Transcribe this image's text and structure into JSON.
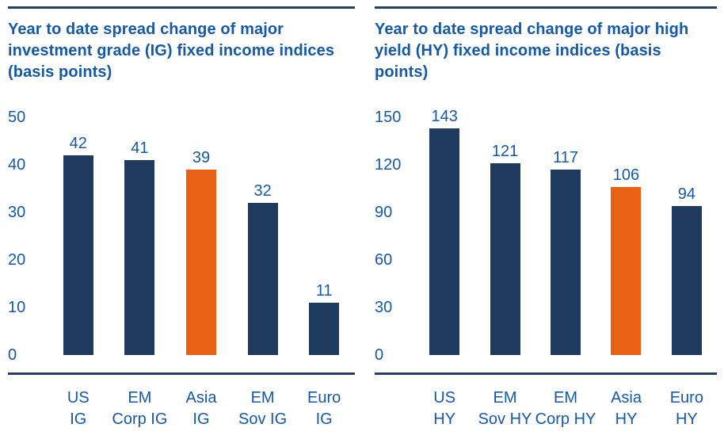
{
  "page_title": "Year to date spread change of fixed income indices",
  "colors": {
    "bar_navy": "#1F3A5F",
    "bar_highlight_orange": "#E96114",
    "text_blue": "#1659A8",
    "rule_navy": "#293E66",
    "background": "#FFFFFF"
  },
  "chart_data": [
    {
      "type": "bar",
      "title": "Year to date spread change of major investment grade (IG) fixed income indices (basis points)",
      "categories": [
        "US IG",
        "EM Corp IG",
        "Asia IG",
        "EM Sov IG",
        "Euro IG"
      ],
      "values": [
        42,
        41,
        39,
        32,
        11
      ],
      "highlight_index": 2,
      "ylim": [
        0,
        50
      ],
      "yticks": [
        0,
        10,
        20,
        30,
        40,
        50
      ],
      "xlabel": "",
      "ylabel": "",
      "legend": "none",
      "grid": false,
      "unit": "basis points"
    },
    {
      "type": "bar",
      "title": "Year to date spread change of major high yield (HY) fixed income indices (basis points)",
      "categories": [
        "US HY",
        "EM Sov HY",
        "EM Corp HY",
        "Asia HY",
        "Euro HY"
      ],
      "values": [
        143,
        121,
        117,
        106,
        94
      ],
      "highlight_index": 3,
      "ylim": [
        0,
        150
      ],
      "yticks": [
        0,
        30,
        60,
        90,
        120,
        150
      ],
      "xlabel": "",
      "ylabel": "",
      "legend": "none",
      "grid": false,
      "unit": "basis points"
    }
  ]
}
